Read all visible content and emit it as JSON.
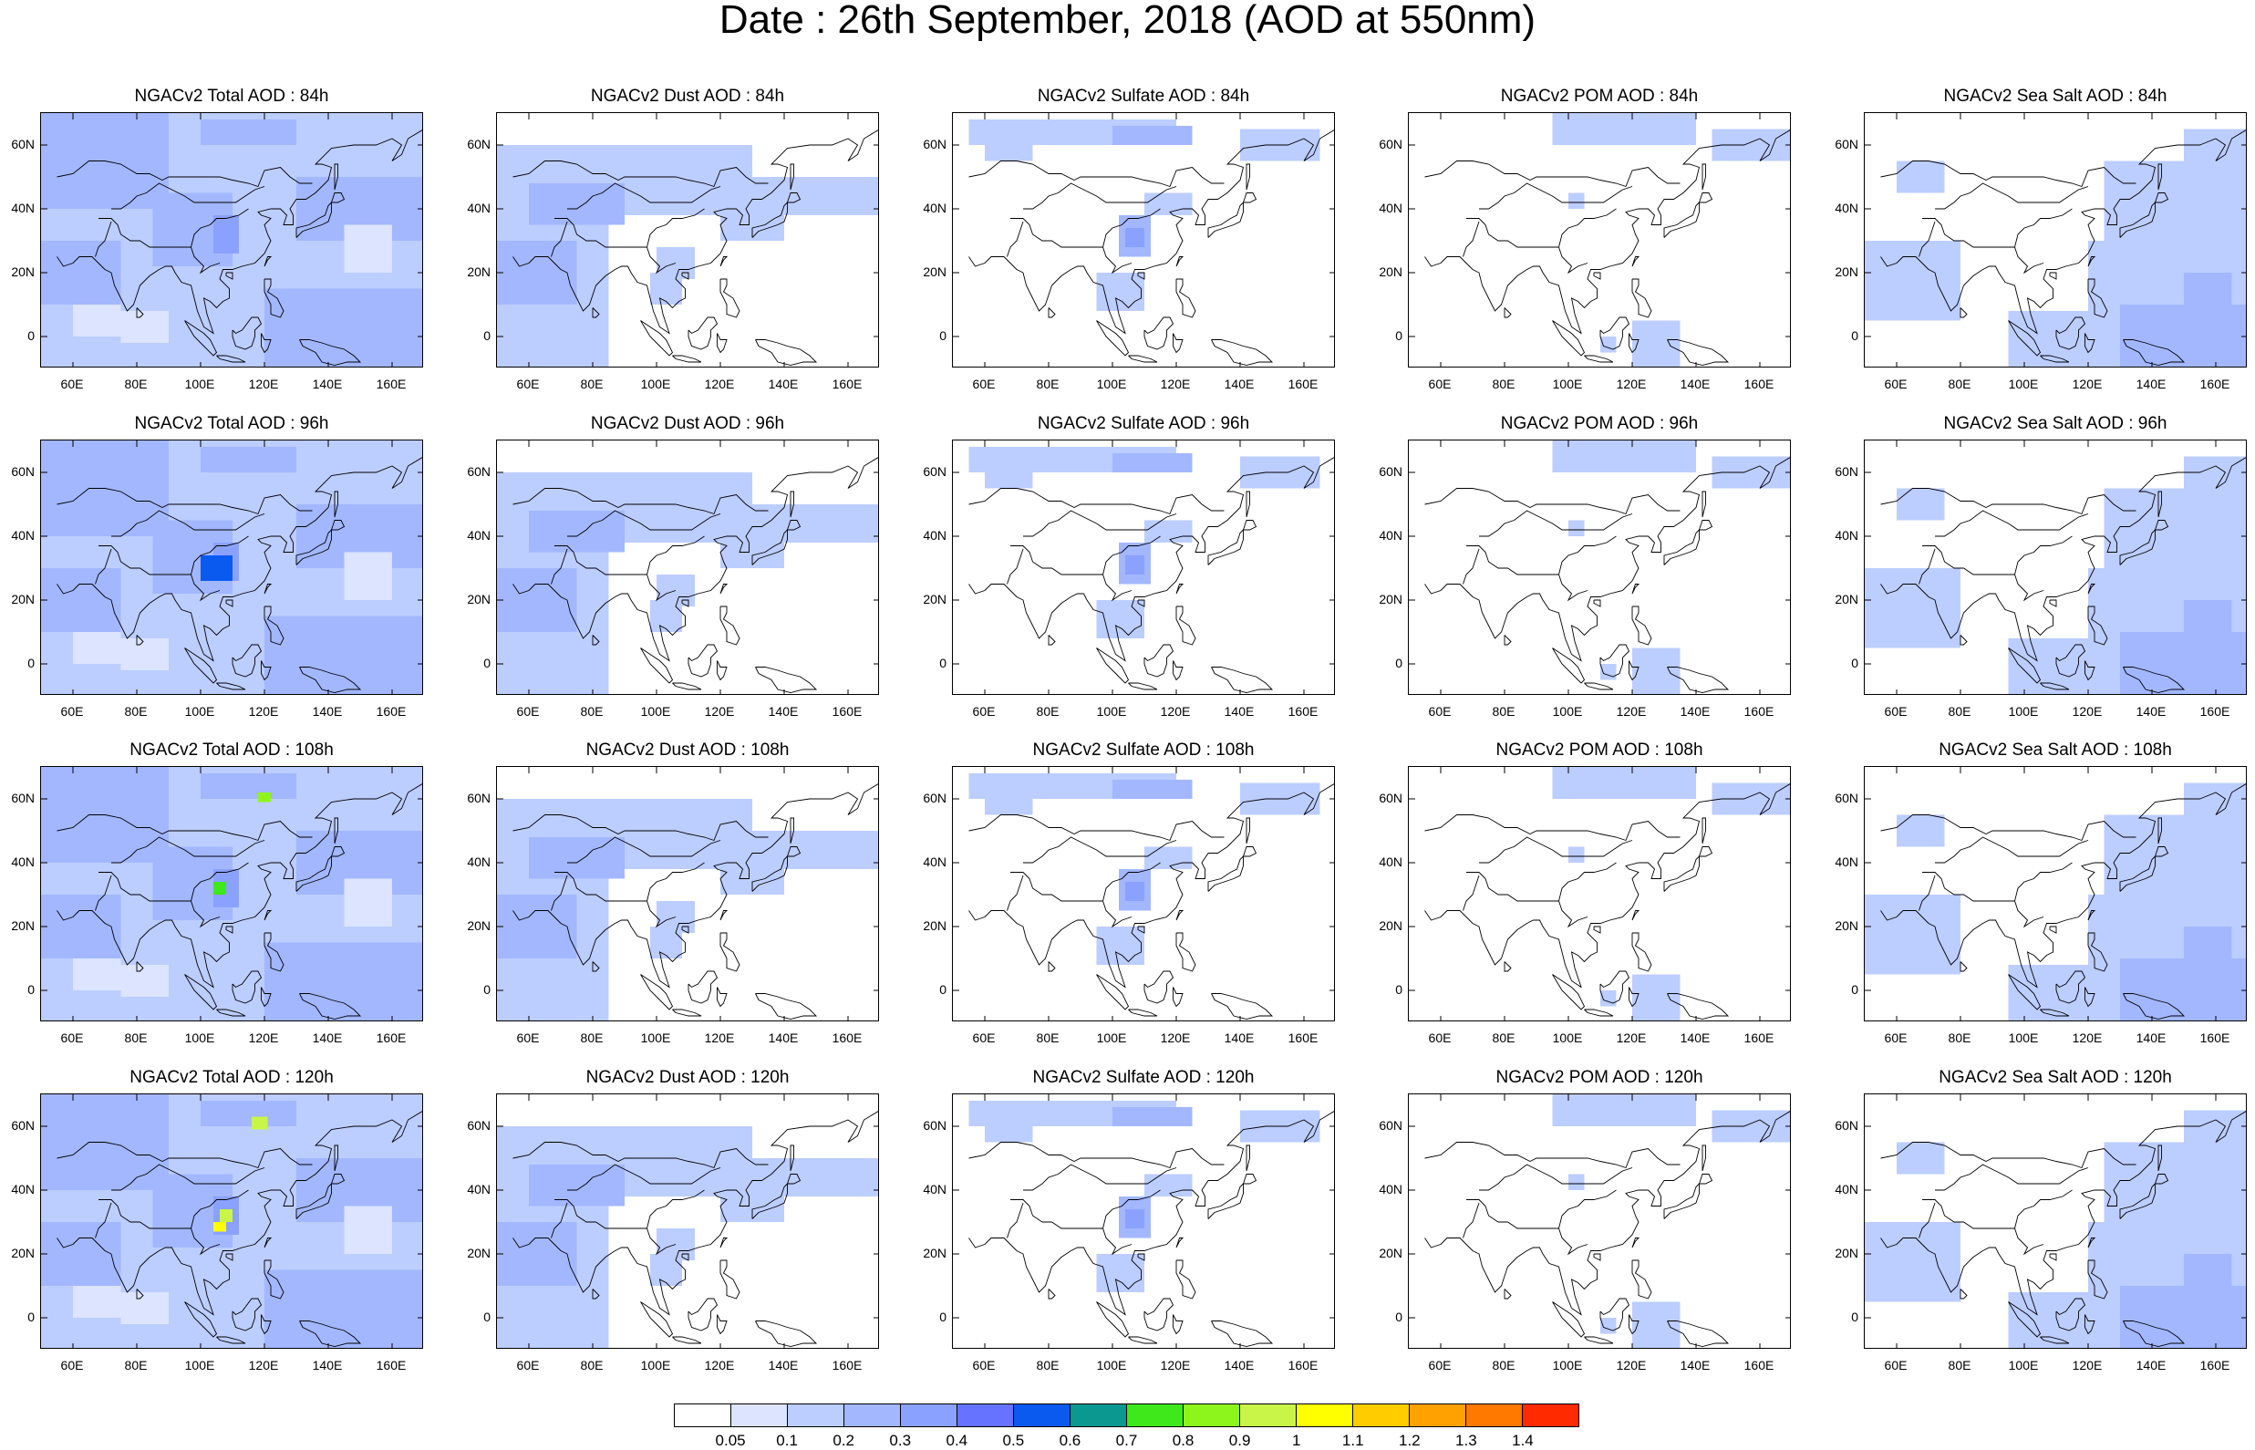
{
  "title": "Date : 26th September, 2018 (AOD at 550nm)",
  "x_ticks": [
    "60E",
    "80E",
    "100E",
    "120E",
    "140E",
    "160E"
  ],
  "y_ticks": [
    "60N",
    "40N",
    "20N",
    "0"
  ],
  "panels": [
    [
      "NGACv2 Total AOD : 84h",
      "NGACv2 Dust AOD : 84h",
      "NGACv2 Sulfate AOD : 84h",
      "NGACv2 POM AOD : 84h",
      "NGACv2 Sea Salt AOD : 84h"
    ],
    [
      "NGACv2 Total AOD : 96h",
      "NGACv2 Dust AOD : 96h",
      "NGACv2 Sulfate AOD : 96h",
      "NGACv2 POM AOD : 96h",
      "NGACv2 Sea Salt AOD : 96h"
    ],
    [
      "NGACv2 Total AOD : 108h",
      "NGACv2 Dust AOD : 108h",
      "NGACv2 Sulfate AOD : 108h",
      "NGACv2 POM AOD : 108h",
      "NGACv2 Sea Salt AOD : 108h"
    ],
    [
      "NGACv2 Total AOD : 120h",
      "NGACv2 Dust AOD : 120h",
      "NGACv2 Sulfate AOD : 120h",
      "NGACv2 POM AOD : 120h",
      "NGACv2 Sea Salt  AOD : 120h"
    ]
  ],
  "colorbar": {
    "labels": [
      "0.05",
      "0.1",
      "0.2",
      "0.3",
      "0.4",
      "0.5",
      "0.6",
      "0.7",
      "0.8",
      "0.9",
      "1",
      "1.1",
      "1.2",
      "1.3",
      "1.4"
    ],
    "colors": [
      "#ffffff",
      "#dce4ff",
      "#bccdff",
      "#a2b7ff",
      "#8ba1ff",
      "#6573ff",
      "#0b5af0",
      "#0a9891",
      "#3ee81a",
      "#8ef51c",
      "#c8f548",
      "#ffff00",
      "#ffcc00",
      "#ffa100",
      "#ff7800",
      "#ff2a00"
    ]
  }
}
